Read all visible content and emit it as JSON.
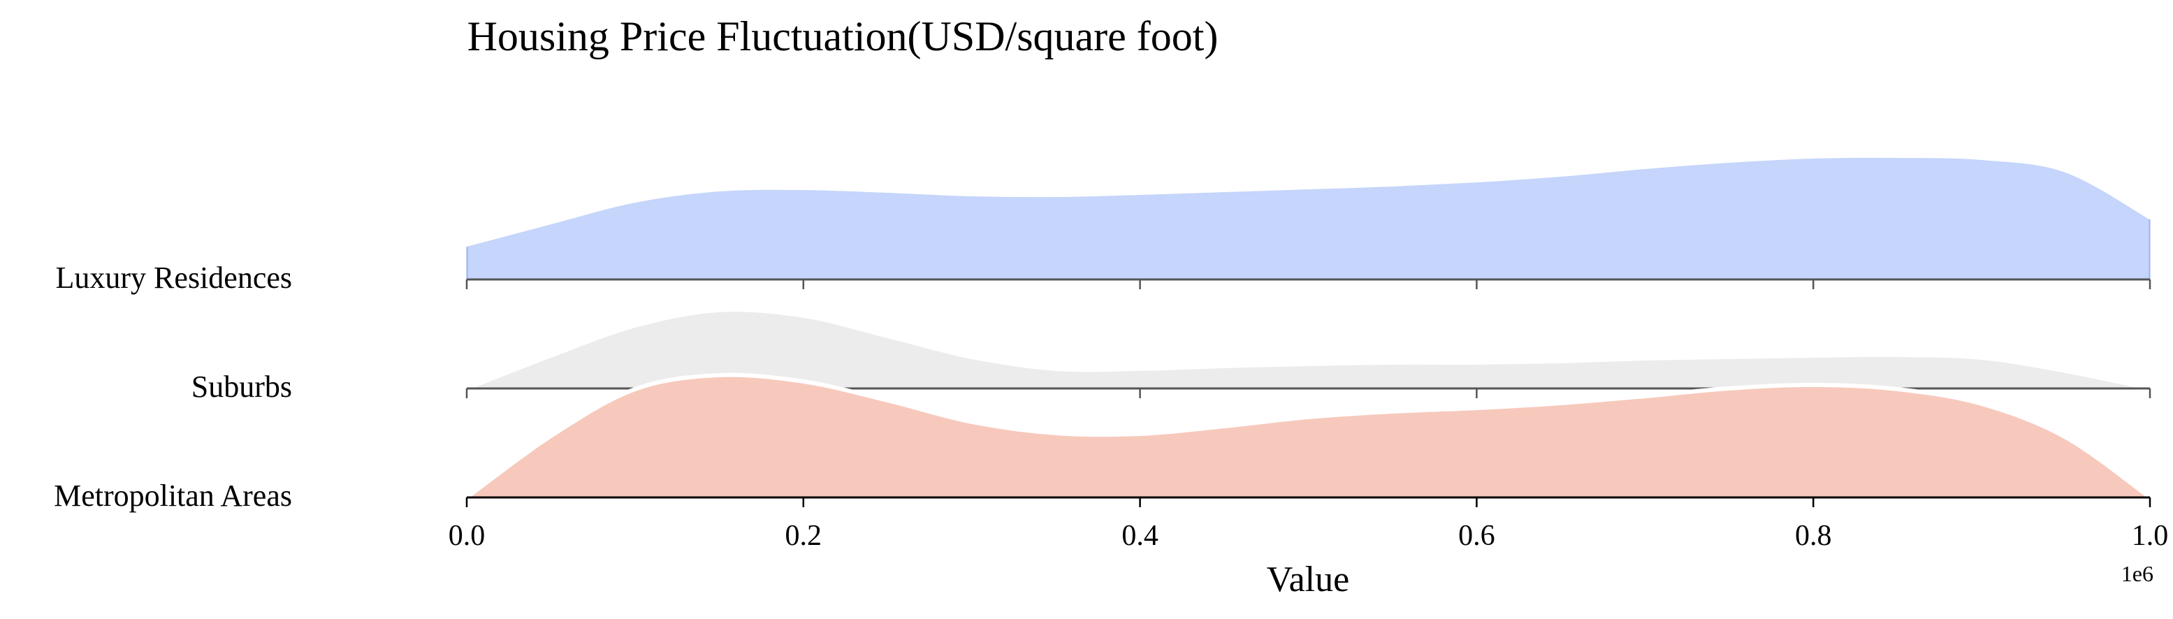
{
  "chart_data": {
    "type": "area",
    "title": "Housing Price Fluctuation(USD/square foot)",
    "xlabel": "Value",
    "x_offset_label": "1e6",
    "xlim": [
      0,
      1000000
    ],
    "x_ticks": [
      0,
      200000,
      400000,
      600000,
      800000,
      1000000
    ],
    "x_tick_labels": [
      "0.0",
      "0.2",
      "0.4",
      "0.6",
      "0.8",
      "1.0"
    ],
    "categories": [
      "Luxury Residences",
      "Suburbs",
      "Metropolitan Areas"
    ],
    "series": [
      {
        "name": "Luxury Residences",
        "color": "#c5d5fb",
        "edge_color": "#9ab3f0",
        "density": [
          [
            0,
            0.301
          ],
          [
            50000,
            0.494
          ],
          [
            100000,
            0.681
          ],
          [
            150000,
            0.777
          ],
          [
            200000,
            0.789
          ],
          [
            250000,
            0.765
          ],
          [
            300000,
            0.735
          ],
          [
            350000,
            0.729
          ],
          [
            400000,
            0.747
          ],
          [
            450000,
            0.771
          ],
          [
            500000,
            0.795
          ],
          [
            550000,
            0.819
          ],
          [
            600000,
            0.855
          ],
          [
            650000,
            0.904
          ],
          [
            700000,
            0.97
          ],
          [
            750000,
            1.024
          ],
          [
            800000,
            1.06
          ],
          [
            850000,
            1.066
          ],
          [
            900000,
            1.048
          ],
          [
            950000,
            0.94
          ],
          [
            1000000,
            0.536
          ]
        ]
      },
      {
        "name": "Suburbs",
        "color": "#ececec",
        "edge_color": "#b8b8b8",
        "density": [
          [
            0,
            0.0
          ],
          [
            50000,
            0.283
          ],
          [
            100000,
            0.542
          ],
          [
            150000,
            0.675
          ],
          [
            200000,
            0.627
          ],
          [
            250000,
            0.452
          ],
          [
            300000,
            0.271
          ],
          [
            350000,
            0.169
          ],
          [
            400000,
            0.169
          ],
          [
            450000,
            0.193
          ],
          [
            500000,
            0.211
          ],
          [
            550000,
            0.223
          ],
          [
            600000,
            0.223
          ],
          [
            650000,
            0.235
          ],
          [
            700000,
            0.259
          ],
          [
            750000,
            0.271
          ],
          [
            800000,
            0.283
          ],
          [
            850000,
            0.289
          ],
          [
            900000,
            0.265
          ],
          [
            950000,
            0.151
          ],
          [
            1000000,
            0.0
          ]
        ]
      },
      {
        "name": "Metropolitan Areas",
        "color": "#f7c9bc",
        "edge_color": "#ef8c6a",
        "density": [
          [
            0,
            0.0
          ],
          [
            50000,
            0.53
          ],
          [
            100000,
            0.934
          ],
          [
            150000,
            1.054
          ],
          [
            200000,
            1.0
          ],
          [
            250000,
            0.837
          ],
          [
            300000,
            0.651
          ],
          [
            350000,
            0.554
          ],
          [
            400000,
            0.548
          ],
          [
            450000,
            0.614
          ],
          [
            500000,
            0.693
          ],
          [
            550000,
            0.741
          ],
          [
            600000,
            0.771
          ],
          [
            650000,
            0.813
          ],
          [
            700000,
            0.873
          ],
          [
            750000,
            0.94
          ],
          [
            800000,
            0.97
          ],
          [
            850000,
            0.934
          ],
          [
            900000,
            0.807
          ],
          [
            950000,
            0.518
          ],
          [
            1000000,
            0.0
          ]
        ]
      }
    ]
  }
}
